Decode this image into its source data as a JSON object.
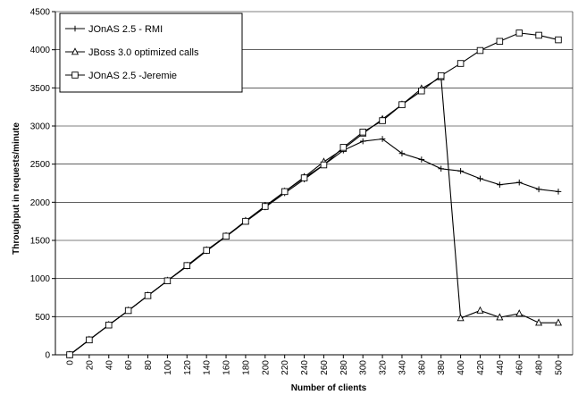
{
  "chart_data": {
    "type": "line",
    "title": "",
    "xlabel": "Number of clients",
    "ylabel": "Throughput in requests/minute",
    "x": [
      0,
      20,
      40,
      60,
      80,
      100,
      120,
      140,
      160,
      180,
      200,
      220,
      240,
      260,
      280,
      300,
      320,
      340,
      360,
      380,
      400,
      420,
      440,
      460,
      480,
      500
    ],
    "x_tick_labels": [
      "0",
      "20",
      "40",
      "60",
      "80",
      "100",
      "120",
      "140",
      "160",
      "180",
      "200",
      "220",
      "240",
      "260",
      "280",
      "300",
      "320",
      "340",
      "360",
      "380",
      "400",
      "420",
      "440",
      "460",
      "480",
      "500"
    ],
    "ylim": [
      0,
      4500
    ],
    "y_ticks": [
      0,
      500,
      1000,
      1500,
      2000,
      2500,
      3000,
      3500,
      4000,
      4500
    ],
    "y_tick_labels": [
      "0",
      "500",
      "1000",
      "1500",
      "2000",
      "2500",
      "3000",
      "3500",
      "4000",
      "4500"
    ],
    "grid": "horizontal",
    "legend_position": "top-left",
    "series": [
      {
        "name": "JOnAS 2.5 - RMI",
        "marker": "plus",
        "color": "#000000",
        "values": [
          0,
          195,
          390,
          580,
          775,
          970,
          1160,
          1360,
          1550,
          1745,
          1935,
          2120,
          2300,
          2490,
          2680,
          2800,
          2830,
          2640,
          2560,
          2440,
          2410,
          2310,
          2230,
          2260,
          2170,
          2140
        ]
      },
      {
        "name": "JBoss 3.0 optimized calls",
        "marker": "triangle",
        "color": "#000000",
        "values": [
          0,
          195,
          390,
          580,
          775,
          970,
          1165,
          1370,
          1555,
          1755,
          1950,
          2140,
          2330,
          2530,
          2700,
          2900,
          3090,
          3280,
          3490,
          3640,
          480,
          580,
          490,
          540,
          420,
          420
        ]
      },
      {
        "name": "JOnAS 2.5 -Jeremie",
        "marker": "square",
        "color": "#000000",
        "values": [
          0,
          195,
          390,
          580,
          775,
          970,
          1170,
          1370,
          1555,
          1750,
          1945,
          2140,
          2320,
          2490,
          2720,
          2920,
          3070,
          3280,
          3460,
          3660,
          3820,
          3990,
          4110,
          4220,
          4190,
          4130
        ]
      }
    ]
  }
}
